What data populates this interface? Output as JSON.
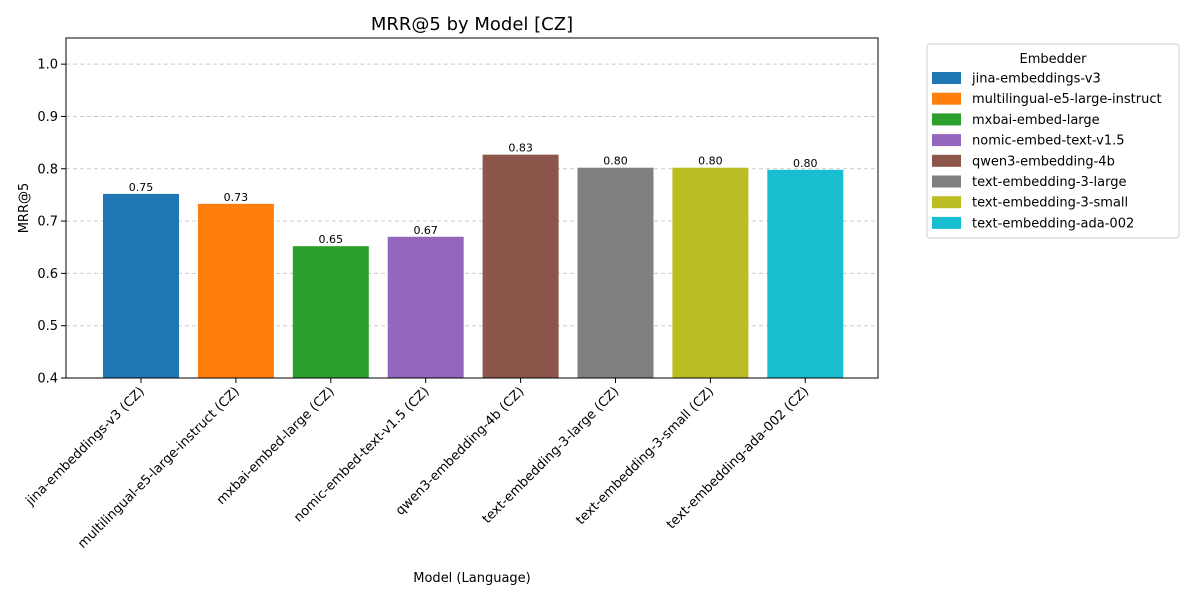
{
  "chart_data": {
    "type": "bar",
    "title": "MRR@5 by Model [CZ]",
    "xlabel": "Model (Language)",
    "ylabel": "MRR@5",
    "ylim": [
      0.4,
      1.05
    ],
    "yticks": [
      "0.4",
      "0.5",
      "0.6",
      "0.7",
      "0.8",
      "0.9",
      "1.0"
    ],
    "grid": "y-dashed",
    "categories": [
      "jina-embeddings-v3 (CZ)",
      "multilingual-e5-large-instruct (CZ)",
      "mxbai-embed-large (CZ)",
      "nomic-embed-text-v1.5 (CZ)",
      "qwen3-embedding-4b (CZ)",
      "text-embedding-3-large (CZ)",
      "text-embedding-3-small (CZ)",
      "text-embedding-ada-002 (CZ)"
    ],
    "values": [
      0.752,
      0.733,
      0.652,
      0.67,
      0.827,
      0.802,
      0.802,
      0.798
    ],
    "value_labels": [
      "0.75",
      "0.73",
      "0.65",
      "0.67",
      "0.83",
      "0.80",
      "0.80",
      "0.80"
    ],
    "colors": [
      "#1f77b4",
      "#ff7f0e",
      "#2ca02c",
      "#9467bd",
      "#8c564b",
      "#7f7f7f",
      "#bcbd22",
      "#17becf"
    ],
    "legend": {
      "title": "Embedder",
      "placement": "outside-right-top",
      "entries": [
        "jina-embeddings-v3",
        "multilingual-e5-large-instruct",
        "mxbai-embed-large",
        "nomic-embed-text-v1.5",
        "qwen3-embedding-4b",
        "text-embedding-3-large",
        "text-embedding-3-small",
        "text-embedding-ada-002"
      ]
    }
  }
}
